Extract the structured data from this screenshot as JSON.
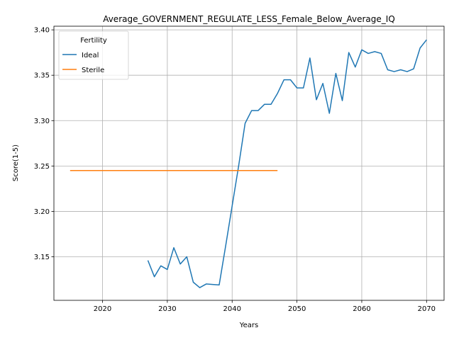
{
  "chart_data": {
    "type": "line",
    "title": "Average_GOVERNMENT_REGULATE_LESS_Female_Below_Average_IQ",
    "xlabel": "Years",
    "ylabel": "Score(1-5)",
    "xlim": [
      2012.5,
      2072.7
    ],
    "ylim": [
      3.102,
      3.404
    ],
    "xticks": [
      2020,
      2030,
      2040,
      2050,
      2060,
      2070
    ],
    "yticks": [
      3.15,
      3.2,
      3.25,
      3.3,
      3.35,
      3.4
    ],
    "xtick_labels": [
      "2020",
      "2030",
      "2040",
      "2050",
      "2060",
      "2070"
    ],
    "ytick_labels": [
      "3.15",
      "3.20",
      "3.25",
      "3.30",
      "3.35",
      "3.40"
    ],
    "grid": true,
    "legend": {
      "title": "Fertility",
      "position": "top-left"
    },
    "series": [
      {
        "name": "Ideal",
        "color": "#1f77b4",
        "x": [
          2027,
          2028,
          2029,
          2030,
          2031,
          2032,
          2033,
          2034,
          2035,
          2036,
          2037,
          2038,
          2039,
          2040,
          2041,
          2042,
          2043,
          2044,
          2045,
          2046,
          2047,
          2048,
          2049,
          2050,
          2051,
          2052,
          2053,
          2054,
          2055,
          2056,
          2057,
          2058,
          2059,
          2060,
          2061,
          2062,
          2063,
          2064,
          2065,
          2066,
          2067,
          2068,
          2069,
          2070
        ],
        "y": [
          3.146,
          3.128,
          3.14,
          3.136,
          3.16,
          3.142,
          3.15,
          3.122,
          3.116,
          3.12,
          3.1195,
          3.119,
          3.162,
          3.206,
          3.25,
          3.297,
          3.311,
          3.311,
          3.318,
          3.318,
          3.33,
          3.345,
          3.345,
          3.336,
          3.336,
          3.369,
          3.323,
          3.341,
          3.308,
          3.352,
          3.322,
          3.375,
          3.359,
          3.378,
          3.374,
          3.376,
          3.374,
          3.356,
          3.354,
          3.356,
          3.354,
          3.357,
          3.38,
          3.389
        ]
      },
      {
        "name": "Sterile",
        "color": "#ff7f0e",
        "x": [
          2015,
          2047
        ],
        "y": [
          3.245,
          3.245
        ]
      }
    ]
  }
}
